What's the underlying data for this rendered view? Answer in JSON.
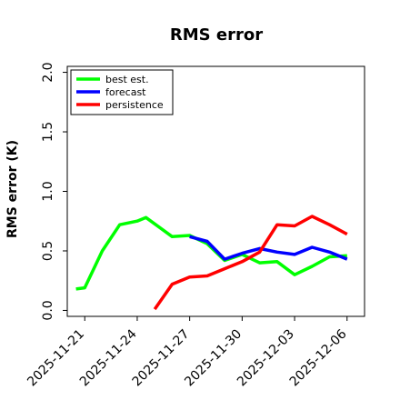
{
  "chart_data": {
    "type": "line",
    "title": "RMS error",
    "xlabel": "",
    "ylabel": "RMS error (K)",
    "ylim": [
      -0.05,
      2.05
    ],
    "yticks": [
      0.0,
      0.5,
      1.0,
      1.5,
      2.0
    ],
    "ytick_labels": [
      "0.0",
      "0.5",
      "1.0",
      "1.5",
      "2.0"
    ],
    "xlim": [
      "2025-11-20",
      "2025-12-07"
    ],
    "xticks": [
      {
        "date": "2025-11-21",
        "label": "2025-11-21",
        "color": "#000000"
      },
      {
        "date": "2025-11-24",
        "label": "2025-11-24",
        "color": "#000000"
      },
      {
        "date": "2025-11-27",
        "label": "2025-11-27",
        "color": "#228b22"
      },
      {
        "date": "2025-11-30",
        "label": "2025-11-30",
        "color": "#000000"
      },
      {
        "date": "2025-12-03",
        "label": "2025-12-03",
        "color": "#000000"
      },
      {
        "date": "2025-12-06",
        "label": "2025-12-06",
        "color": "#000000"
      }
    ],
    "grid": false,
    "legend_position": "top-left",
    "series": [
      {
        "name": "best est.",
        "color": "#00ff00",
        "points": [
          [
            "2025-11-20 12:00",
            0.18
          ],
          [
            "2025-11-21 00:00",
            0.19
          ],
          [
            "2025-11-22 00:00",
            0.5
          ],
          [
            "2025-11-23 00:00",
            0.72
          ],
          [
            "2025-11-24 00:00",
            0.75
          ],
          [
            "2025-11-24 12:00",
            0.78
          ],
          [
            "2025-11-26 00:00",
            0.62
          ],
          [
            "2025-11-27 00:00",
            0.63
          ],
          [
            "2025-11-28 00:00",
            0.56
          ],
          [
            "2025-11-29 00:00",
            0.42
          ],
          [
            "2025-11-30 00:00",
            0.47
          ],
          [
            "2025-12-01 00:00",
            0.4
          ],
          [
            "2025-12-02 00:00",
            0.41
          ],
          [
            "2025-12-03 00:00",
            0.3
          ],
          [
            "2025-12-04 00:00",
            0.37
          ],
          [
            "2025-12-05 00:00",
            0.45
          ],
          [
            "2025-12-06 00:00",
            0.46
          ]
        ]
      },
      {
        "name": "forecast",
        "color": "#0000ff",
        "points": [
          [
            "2025-11-27 00:00",
            0.62
          ],
          [
            "2025-11-28 00:00",
            0.58
          ],
          [
            "2025-11-29 00:00",
            0.43
          ],
          [
            "2025-11-30 00:00",
            0.48
          ],
          [
            "2025-12-01 00:00",
            0.52
          ],
          [
            "2025-12-02 00:00",
            0.49
          ],
          [
            "2025-12-03 00:00",
            0.47
          ],
          [
            "2025-12-04 00:00",
            0.53
          ],
          [
            "2025-12-05 00:00",
            0.49
          ],
          [
            "2025-12-06 00:00",
            0.43
          ]
        ]
      },
      {
        "name": "persistence",
        "color": "#ff0000",
        "points": [
          [
            "2025-11-25 00:00",
            0.01
          ],
          [
            "2025-11-26 00:00",
            0.22
          ],
          [
            "2025-11-27 00:00",
            0.28
          ],
          [
            "2025-11-28 00:00",
            0.29
          ],
          [
            "2025-11-29 00:00",
            0.35
          ],
          [
            "2025-11-30 00:00",
            0.41
          ],
          [
            "2025-12-01 00:00",
            0.49
          ],
          [
            "2025-12-02 00:00",
            0.72
          ],
          [
            "2025-12-03 00:00",
            0.71
          ],
          [
            "2025-12-04 00:00",
            0.79
          ],
          [
            "2025-12-05 00:00",
            0.72
          ],
          [
            "2025-12-06 00:00",
            0.64
          ]
        ]
      }
    ]
  }
}
